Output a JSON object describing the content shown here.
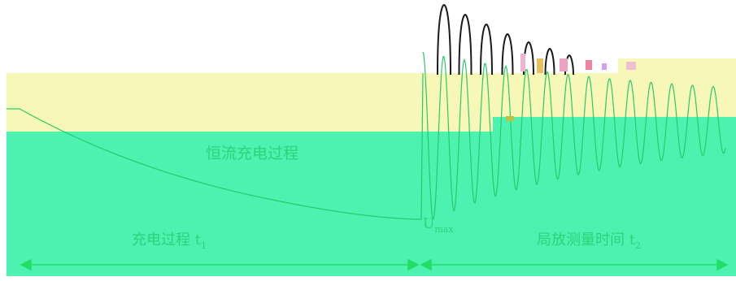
{
  "labels": {
    "charging_mode": "恒流充电过程",
    "charging_phase": "充电过程 t",
    "charging_phase_sub": "1",
    "umax": "U",
    "umax_sub": "max",
    "pd_phase": "局放测量时间 t",
    "pd_phase_sub": "2"
  },
  "colors": {
    "background": "#ffffff",
    "upper_band": "#f7f7b8",
    "lower_band": "#4df2b0",
    "curve": "#2bc86a",
    "damped_wave": "#1a1a1a",
    "text": "#2bd37a",
    "arrow": "#22dd66"
  }
}
